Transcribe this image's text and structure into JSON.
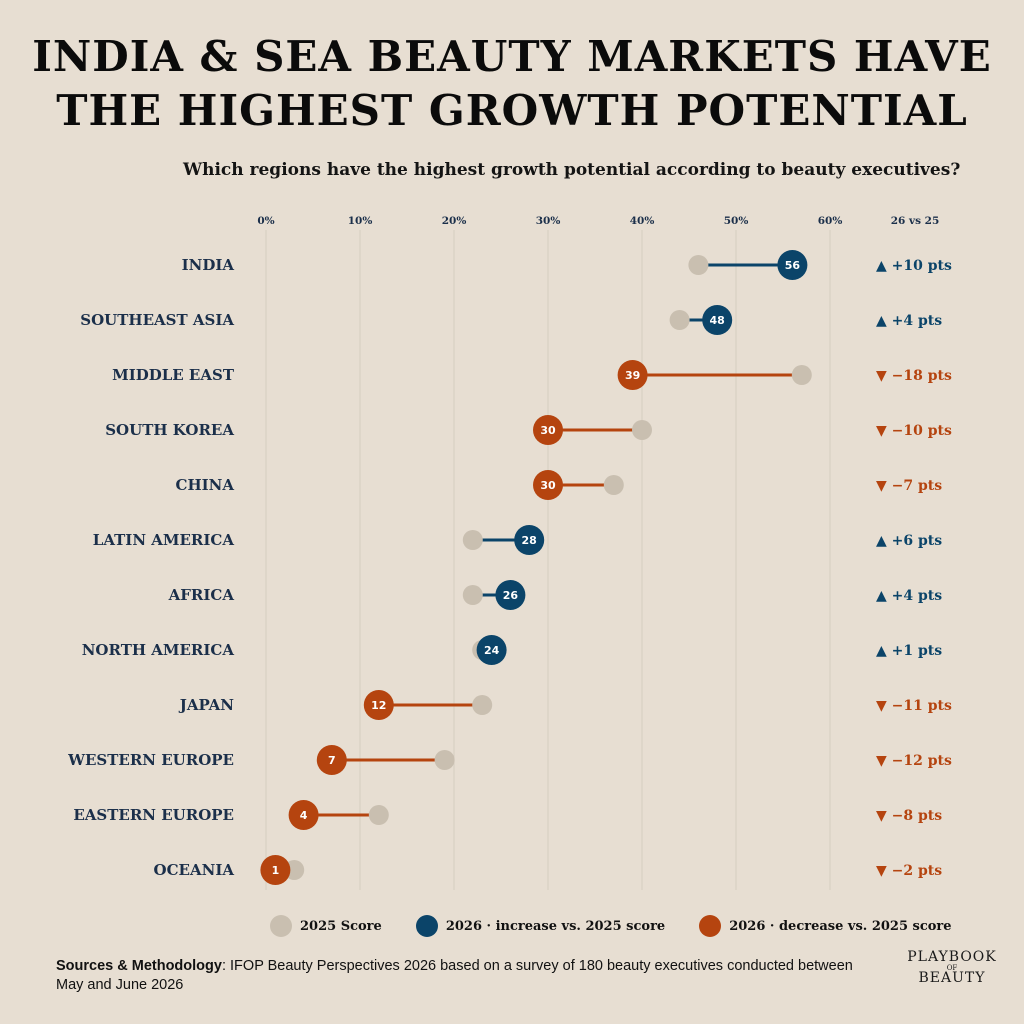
{
  "title_line1": "INDIA & SEA BEAUTY MARKETS HAVE",
  "title_line2": "THE HIGHEST GROWTH POTENTIAL",
  "subtitle": "Which regions have the highest growth potential according to beauty executives?",
  "delta_header": "26 vs 25",
  "colors": {
    "background": "#e7ded2",
    "score_2025": "#c9bfb0",
    "increase": "#0b4469",
    "decrease": "#b5440f",
    "label": "#1b2f4a",
    "grid": "#d6cdc0"
  },
  "chart_data": {
    "type": "dumbbell",
    "xlim": [
      0,
      60
    ],
    "x_ticks": [
      0,
      10,
      20,
      30,
      40,
      50,
      60
    ],
    "tick_labels": [
      "0%",
      "10%",
      "20%",
      "30%",
      "40%",
      "50%",
      "60%"
    ],
    "categories": [
      "INDIA",
      "SOUTHEAST ASIA",
      "MIDDLE EAST",
      "SOUTH KOREA",
      "CHINA",
      "LATIN AMERICA",
      "AFRICA",
      "NORTH AMERICA",
      "JAPAN",
      "WESTERN EUROPE",
      "EASTERN EUROPE",
      "OCEANIA"
    ],
    "series": [
      {
        "name": "2025 Score",
        "values": [
          46,
          44,
          57,
          40,
          37,
          22,
          22,
          23,
          23,
          19,
          12,
          3
        ]
      },
      {
        "name": "2026",
        "values": [
          56,
          48,
          39,
          30,
          30,
          28,
          26,
          24,
          12,
          7,
          4,
          1
        ]
      }
    ],
    "deltas": [
      "▲ +10 pts",
      "▲ +4 pts",
      "▼ −18 pts",
      "▼ −10 pts",
      "▼ −7 pts",
      "▲ +6 pts",
      "▲ +4 pts",
      "▲ +1 pts",
      "▼ −11 pts",
      "▼ −12 pts",
      "▼ −8 pts",
      "▼ −2 pts"
    ],
    "grid": true
  },
  "legend": {
    "score_2025": "2025 Score",
    "increase": "2026 · increase vs. 2025 score",
    "decrease": "2026 · decrease vs. 2025 score"
  },
  "source": {
    "label": "Sources & Methodology",
    "text": ": IFOP Beauty Perspectives 2026 based on a survey of 180 beauty executives conducted between May and June 2026"
  },
  "logo": {
    "line1": "PLAYBOOK",
    "line2": "OF",
    "line3": "BEAUTY"
  }
}
